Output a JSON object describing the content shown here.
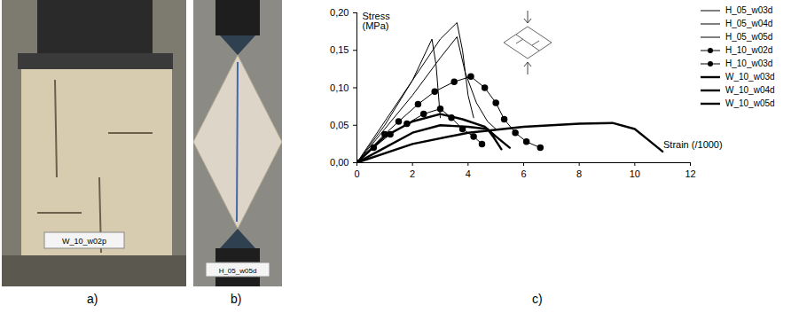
{
  "panels": [
    {
      "label": "a)",
      "photo_label": "W_10_w02p"
    },
    {
      "label": "b)",
      "photo_label": "H_05_w05d"
    }
  ],
  "chart_data": {
    "type": "line",
    "caption": "c)",
    "y_label": "Stress (MPa)",
    "x_label": "Strain (/1000)",
    "xlim": [
      0,
      12
    ],
    "xticks": [
      0,
      2,
      4,
      6,
      8,
      10,
      12
    ],
    "ylim": [
      0,
      0.2
    ],
    "yticks": [
      {
        "value": 0,
        "label": "0,00"
      },
      {
        "value": 0.05,
        "label": "0,05"
      },
      {
        "value": 0.1,
        "label": "0,10"
      },
      {
        "value": 0.15,
        "label": "0,15"
      },
      {
        "value": 0.2,
        "label": "0,20"
      }
    ],
    "legend": "top-right",
    "series": [
      {
        "name": "H_05_w03d",
        "color": "#000000",
        "line_style": "thin",
        "marker": "none",
        "x": [
          0,
          1,
          2,
          2.7,
          2.85,
          3.0
        ],
        "values": [
          0,
          0.05,
          0.11,
          0.165,
          0.13,
          0.06
        ]
      },
      {
        "name": "H_05_w04d",
        "color": "#000000",
        "line_style": "thin",
        "marker": "none",
        "x": [
          0,
          1,
          2,
          3,
          3.6,
          3.8,
          4.0,
          4.2
        ],
        "values": [
          0,
          0.055,
          0.11,
          0.165,
          0.187,
          0.15,
          0.09,
          0.06
        ]
      },
      {
        "name": "H_05_w05d",
        "color": "#000000",
        "line_style": "thin",
        "marker": "none",
        "x": [
          0,
          1,
          2,
          3,
          3.6,
          3.9,
          4.3,
          4.7,
          5.0
        ],
        "values": [
          0,
          0.045,
          0.09,
          0.14,
          0.168,
          0.12,
          0.08,
          0.055,
          0.045
        ]
      },
      {
        "name": "H_10_w02d",
        "color": "#000000",
        "line_style": "thin",
        "marker": "circle",
        "x": [
          0,
          0.6,
          1.2,
          1.8,
          2.4,
          3.0,
          3.4,
          3.8,
          4.2,
          4.5
        ],
        "values": [
          0,
          0.02,
          0.038,
          0.052,
          0.065,
          0.072,
          0.06,
          0.045,
          0.035,
          0.025
        ]
      },
      {
        "name": "H_10_w03d",
        "color": "#000000",
        "line_style": "thin",
        "marker": "circle",
        "x": [
          0,
          1.0,
          1.5,
          2.2,
          2.8,
          3.5,
          4.1,
          4.6,
          5.0,
          5.3,
          5.7,
          6.1,
          6.6
        ],
        "values": [
          0,
          0.038,
          0.055,
          0.078,
          0.095,
          0.108,
          0.115,
          0.1,
          0.08,
          0.058,
          0.04,
          0.028,
          0.02
        ]
      },
      {
        "name": "W_10_w03d",
        "color": "#000000",
        "line_style": "thick",
        "marker": "none",
        "x": [
          0,
          1,
          2,
          3,
          3.8,
          4.6,
          5.0,
          5.5
        ],
        "values": [
          0,
          0.035,
          0.055,
          0.065,
          0.058,
          0.048,
          0.035,
          0.02
        ]
      },
      {
        "name": "W_10_w04d",
        "color": "#000000",
        "line_style": "thick",
        "marker": "none",
        "x": [
          0,
          1,
          2,
          3,
          4,
          4.7,
          4.9,
          5.2
        ],
        "values": [
          0,
          0.02,
          0.04,
          0.05,
          0.048,
          0.045,
          0.035,
          0.018
        ]
      },
      {
        "name": "W_10_w05d",
        "color": "#000000",
        "line_style": "thick",
        "marker": "none",
        "x": [
          0,
          2,
          4,
          6,
          8,
          9.2,
          10,
          10.5,
          11
        ],
        "values": [
          0,
          0.025,
          0.04,
          0.048,
          0.052,
          0.053,
          0.045,
          0.03,
          0.015
        ]
      }
    ]
  }
}
